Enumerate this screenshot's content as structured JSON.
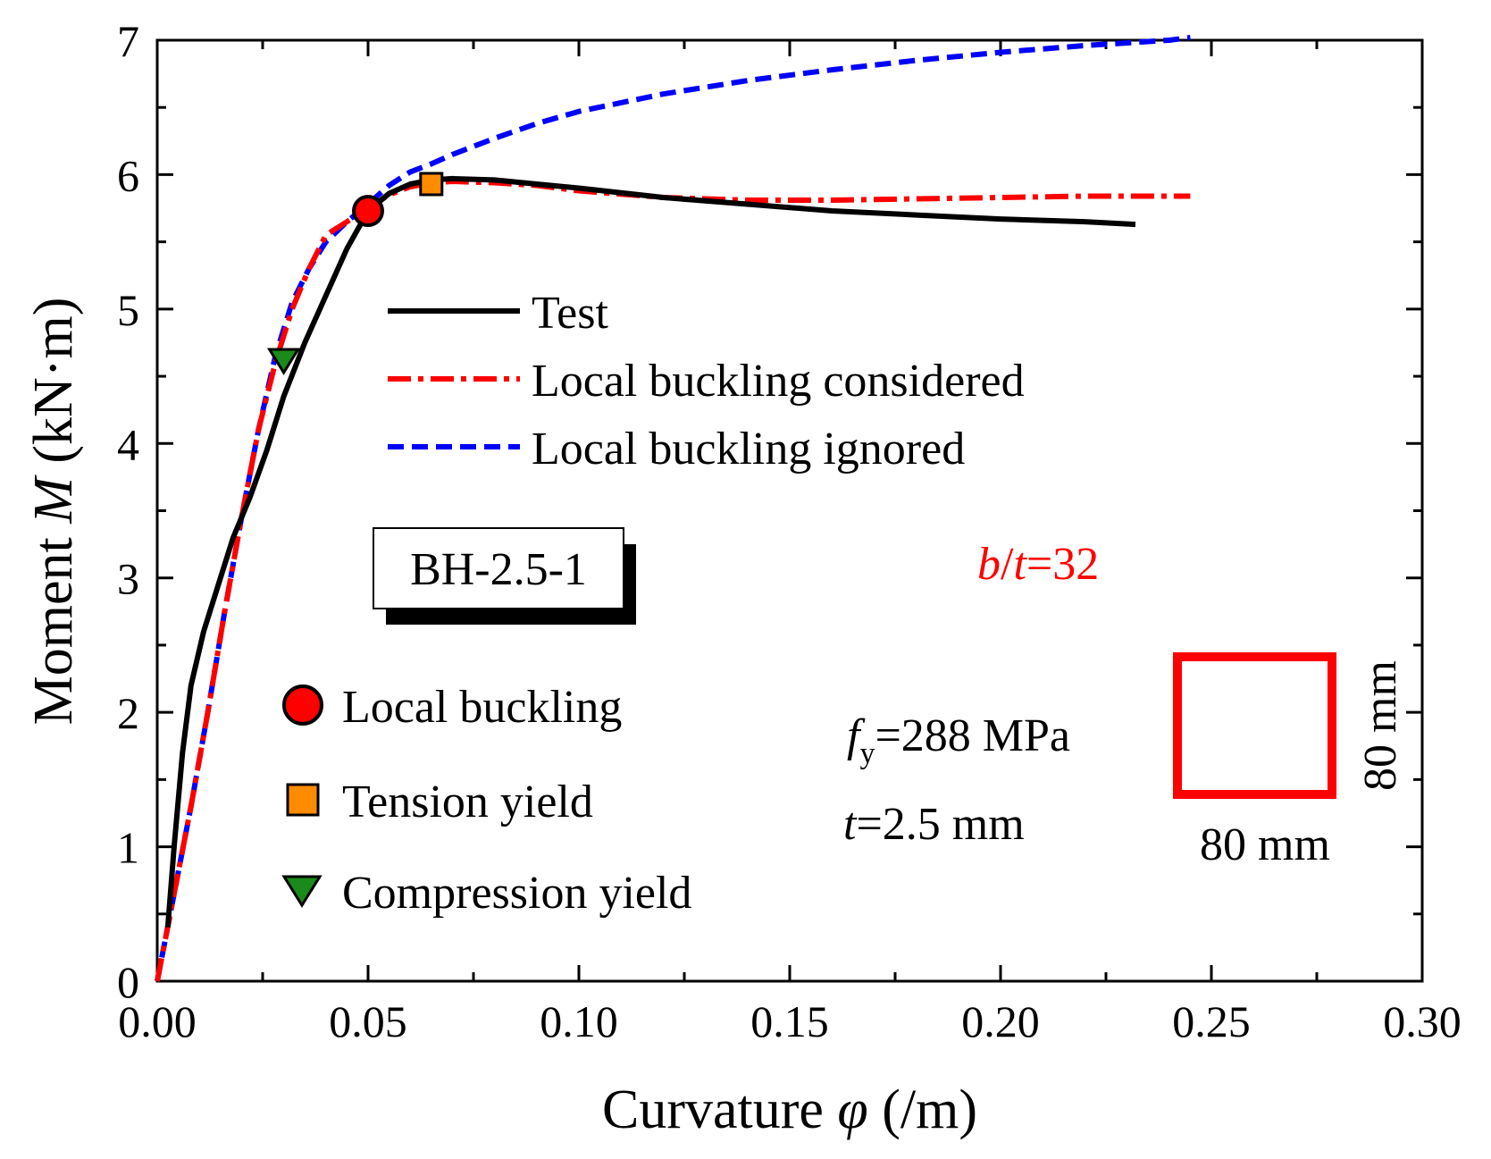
{
  "chart_data": {
    "type": "line",
    "xlabel": "Curvature φ (/m)",
    "xlabel_parts": {
      "prefix": "Curvature ",
      "symbol": "φ",
      "suffix": " (/m)"
    },
    "ylabel": "Moment M (kN·m)",
    "ylabel_parts": {
      "prefix": "Moment ",
      "symbol": "M",
      "suffix": " (kN·m)"
    },
    "xlim": [
      0,
      0.3
    ],
    "ylim": [
      0,
      7
    ],
    "xticks": [
      "0.00",
      "0.05",
      "0.10",
      "0.15",
      "0.20",
      "0.25",
      "0.30"
    ],
    "yticks": [
      "0",
      "1",
      "2",
      "3",
      "4",
      "5",
      "6",
      "7"
    ],
    "grid": false,
    "legend_position": "top-center",
    "series": [
      {
        "name": "Test",
        "style": "solid",
        "color": "#000000",
        "x": [
          0.0025,
          0.004,
          0.006,
          0.008,
          0.011,
          0.015,
          0.018,
          0.022,
          0.026,
          0.03,
          0.035,
          0.04,
          0.045,
          0.05,
          0.055,
          0.06,
          0.065,
          0.07,
          0.08,
          0.09,
          0.1,
          0.12,
          0.14,
          0.16,
          0.18,
          0.2,
          0.22,
          0.232
        ],
        "y": [
          0.4,
          1.0,
          1.7,
          2.2,
          2.6,
          3.0,
          3.3,
          3.6,
          3.95,
          4.35,
          4.75,
          5.1,
          5.45,
          5.73,
          5.86,
          5.93,
          5.96,
          5.97,
          5.96,
          5.93,
          5.9,
          5.83,
          5.78,
          5.73,
          5.7,
          5.67,
          5.65,
          5.63
        ]
      },
      {
        "name": "Local buckling considered",
        "style": "dash-dot",
        "color": "#ff0000",
        "x": [
          0.0,
          0.004,
          0.008,
          0.012,
          0.016,
          0.02,
          0.024,
          0.028,
          0.032,
          0.036,
          0.04,
          0.045,
          0.05,
          0.055,
          0.06,
          0.065,
          0.07,
          0.08,
          0.09,
          0.1,
          0.12,
          0.14,
          0.16,
          0.18,
          0.2,
          0.22,
          0.245
        ],
        "y": [
          0.0,
          0.65,
          1.3,
          2.0,
          2.75,
          3.45,
          4.1,
          4.6,
          5.0,
          5.3,
          5.55,
          5.65,
          5.75,
          5.85,
          5.91,
          5.94,
          5.95,
          5.94,
          5.92,
          5.88,
          5.83,
          5.81,
          5.81,
          5.82,
          5.83,
          5.84,
          5.84
        ]
      },
      {
        "name": "Local buckling ignored",
        "style": "dashed",
        "color": "#0000ff",
        "x": [
          0.0,
          0.004,
          0.008,
          0.012,
          0.016,
          0.02,
          0.024,
          0.028,
          0.032,
          0.036,
          0.04,
          0.045,
          0.05,
          0.055,
          0.06,
          0.065,
          0.07,
          0.08,
          0.09,
          0.1,
          0.12,
          0.14,
          0.16,
          0.18,
          0.2,
          0.22,
          0.24,
          0.245
        ],
        "y": [
          0.0,
          0.65,
          1.3,
          2.0,
          2.75,
          3.45,
          4.1,
          4.65,
          5.05,
          5.3,
          5.5,
          5.65,
          5.78,
          5.92,
          6.02,
          6.08,
          6.15,
          6.27,
          6.38,
          6.47,
          6.6,
          6.7,
          6.78,
          6.85,
          6.91,
          6.96,
          7.0,
          7.02
        ]
      }
    ],
    "markers": [
      {
        "name": "Local buckling",
        "shape": "circle",
        "color": "#ff0000",
        "x": 0.05,
        "y": 5.73
      },
      {
        "name": "Tension yield",
        "shape": "square",
        "color": "#ff8c00",
        "x": 0.065,
        "y": 5.93
      },
      {
        "name": "Compression yield",
        "shape": "triangle-down",
        "color": "#1a8a1a",
        "x": 0.03,
        "y": 4.62
      }
    ],
    "legend": [
      {
        "label": "Test",
        "color": "#000000",
        "style": "solid"
      },
      {
        "label": "Local buckling considered",
        "color": "#ff0000",
        "style": "dash-dot"
      },
      {
        "label": "Local buckling ignored",
        "color": "#0000ff",
        "style": "dashed"
      }
    ],
    "marker_legend": [
      {
        "label": "Local buckling",
        "shape": "circle",
        "color": "#ff0000"
      },
      {
        "label": "Tension yield",
        "shape": "square",
        "color": "#ff8c00"
      },
      {
        "label": "Compression yield",
        "shape": "triangle-down",
        "color": "#1a8a1a"
      }
    ],
    "annotations": {
      "specimen": "BH-2.5-1",
      "ratio": {
        "b": "b",
        "slash": "/",
        "t": "t",
        "value": "=32",
        "color": "#ff0000"
      },
      "fy": {
        "f": "f",
        "sub": "y",
        "value": "=288 MPa"
      },
      "thickness": {
        "t": "t",
        "value": "=2.5 mm"
      },
      "section": {
        "width_label": "80 mm",
        "height_label": "80 mm",
        "color": "#ff0000"
      }
    }
  }
}
